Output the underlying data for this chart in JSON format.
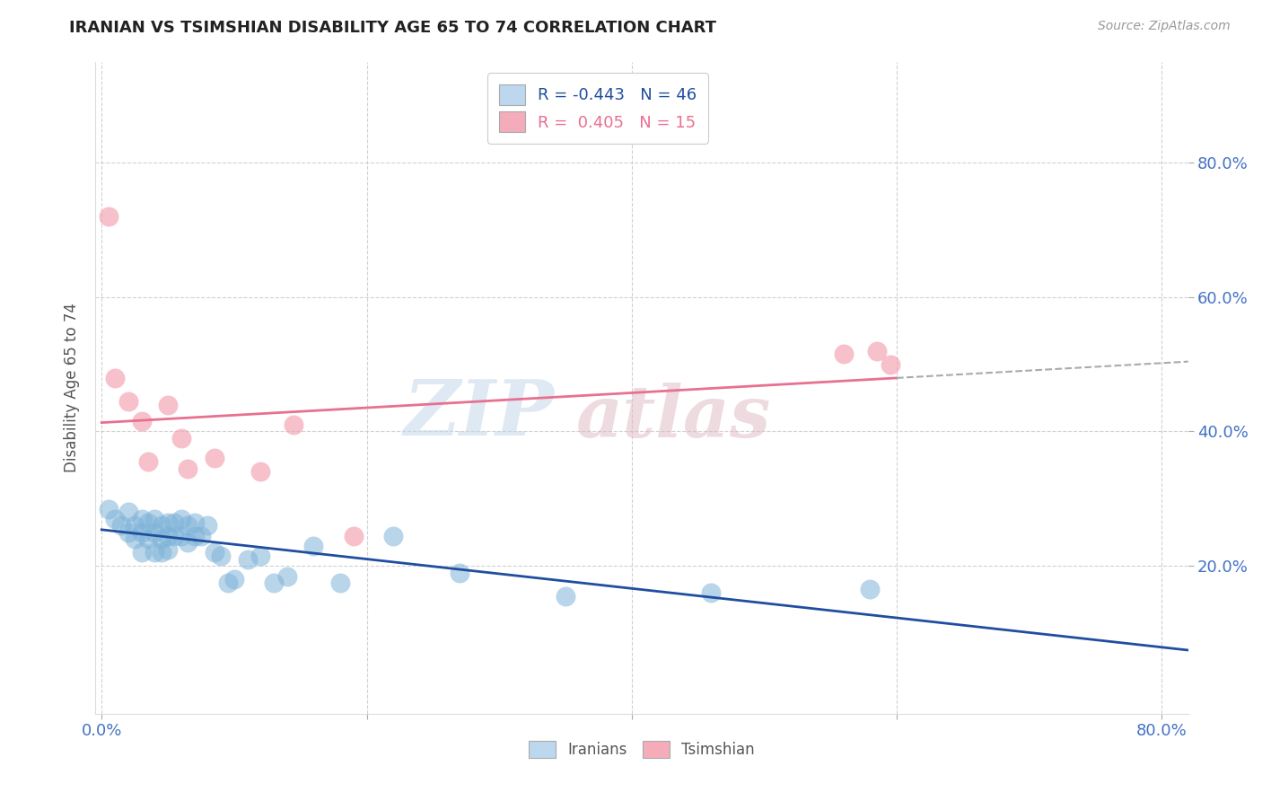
{
  "title": "IRANIAN VS TSIMSHIAN DISABILITY AGE 65 TO 74 CORRELATION CHART",
  "source_text": "Source: ZipAtlas.com",
  "ylabel": "Disability Age 65 to 74",
  "xlim": [
    -0.005,
    0.82
  ],
  "ylim": [
    -0.02,
    0.95
  ],
  "xtick_vals": [
    0.0,
    0.2,
    0.4,
    0.6,
    0.8
  ],
  "xtick_labels": [
    "0.0%",
    "",
    "",
    "",
    "80.0%"
  ],
  "ytick_vals": [
    0.2,
    0.4,
    0.6,
    0.8
  ],
  "ytick_labels": [
    "20.0%",
    "40.0%",
    "60.0%",
    "80.0%"
  ],
  "iranians_R": -0.443,
  "iranians_N": 46,
  "tsimshian_R": 0.405,
  "tsimshian_N": 15,
  "blue_dot_color": "#7EB3D8",
  "pink_dot_color": "#F4A0B0",
  "blue_line_color": "#1F4E9F",
  "pink_line_color": "#E87090",
  "gray_dash_color": "#AAAAAA",
  "legend_box_blue": "#BDD7EE",
  "legend_box_pink": "#F4ACBB",
  "iranians_x": [
    0.005,
    0.01,
    0.015,
    0.02,
    0.02,
    0.025,
    0.025,
    0.03,
    0.03,
    0.03,
    0.035,
    0.035,
    0.04,
    0.04,
    0.04,
    0.045,
    0.045,
    0.045,
    0.05,
    0.05,
    0.05,
    0.055,
    0.055,
    0.06,
    0.06,
    0.065,
    0.065,
    0.07,
    0.07,
    0.075,
    0.08,
    0.085,
    0.09,
    0.095,
    0.1,
    0.11,
    0.12,
    0.13,
    0.14,
    0.16,
    0.18,
    0.22,
    0.27,
    0.35,
    0.46,
    0.58
  ],
  "iranians_y": [
    0.285,
    0.27,
    0.26,
    0.28,
    0.25,
    0.26,
    0.24,
    0.27,
    0.25,
    0.22,
    0.265,
    0.24,
    0.27,
    0.25,
    0.22,
    0.26,
    0.24,
    0.22,
    0.265,
    0.245,
    0.225,
    0.265,
    0.245,
    0.27,
    0.245,
    0.26,
    0.235,
    0.265,
    0.245,
    0.245,
    0.26,
    0.22,
    0.215,
    0.175,
    0.18,
    0.21,
    0.215,
    0.175,
    0.185,
    0.23,
    0.175,
    0.245,
    0.19,
    0.155,
    0.16,
    0.165
  ],
  "tsimshian_x": [
    0.005,
    0.01,
    0.02,
    0.03,
    0.035,
    0.05,
    0.06,
    0.065,
    0.085,
    0.12,
    0.145,
    0.19,
    0.56,
    0.585,
    0.595
  ],
  "tsimshian_y": [
    0.72,
    0.48,
    0.445,
    0.415,
    0.355,
    0.44,
    0.39,
    0.345,
    0.36,
    0.34,
    0.41,
    0.245,
    0.515,
    0.52,
    0.5
  ],
  "tsimshian_line_end_solid": 0.6,
  "background_color": "#FFFFFF",
  "grid_color": "#CCCCCC",
  "figsize": [
    14.06,
    8.92
  ],
  "dpi": 100
}
